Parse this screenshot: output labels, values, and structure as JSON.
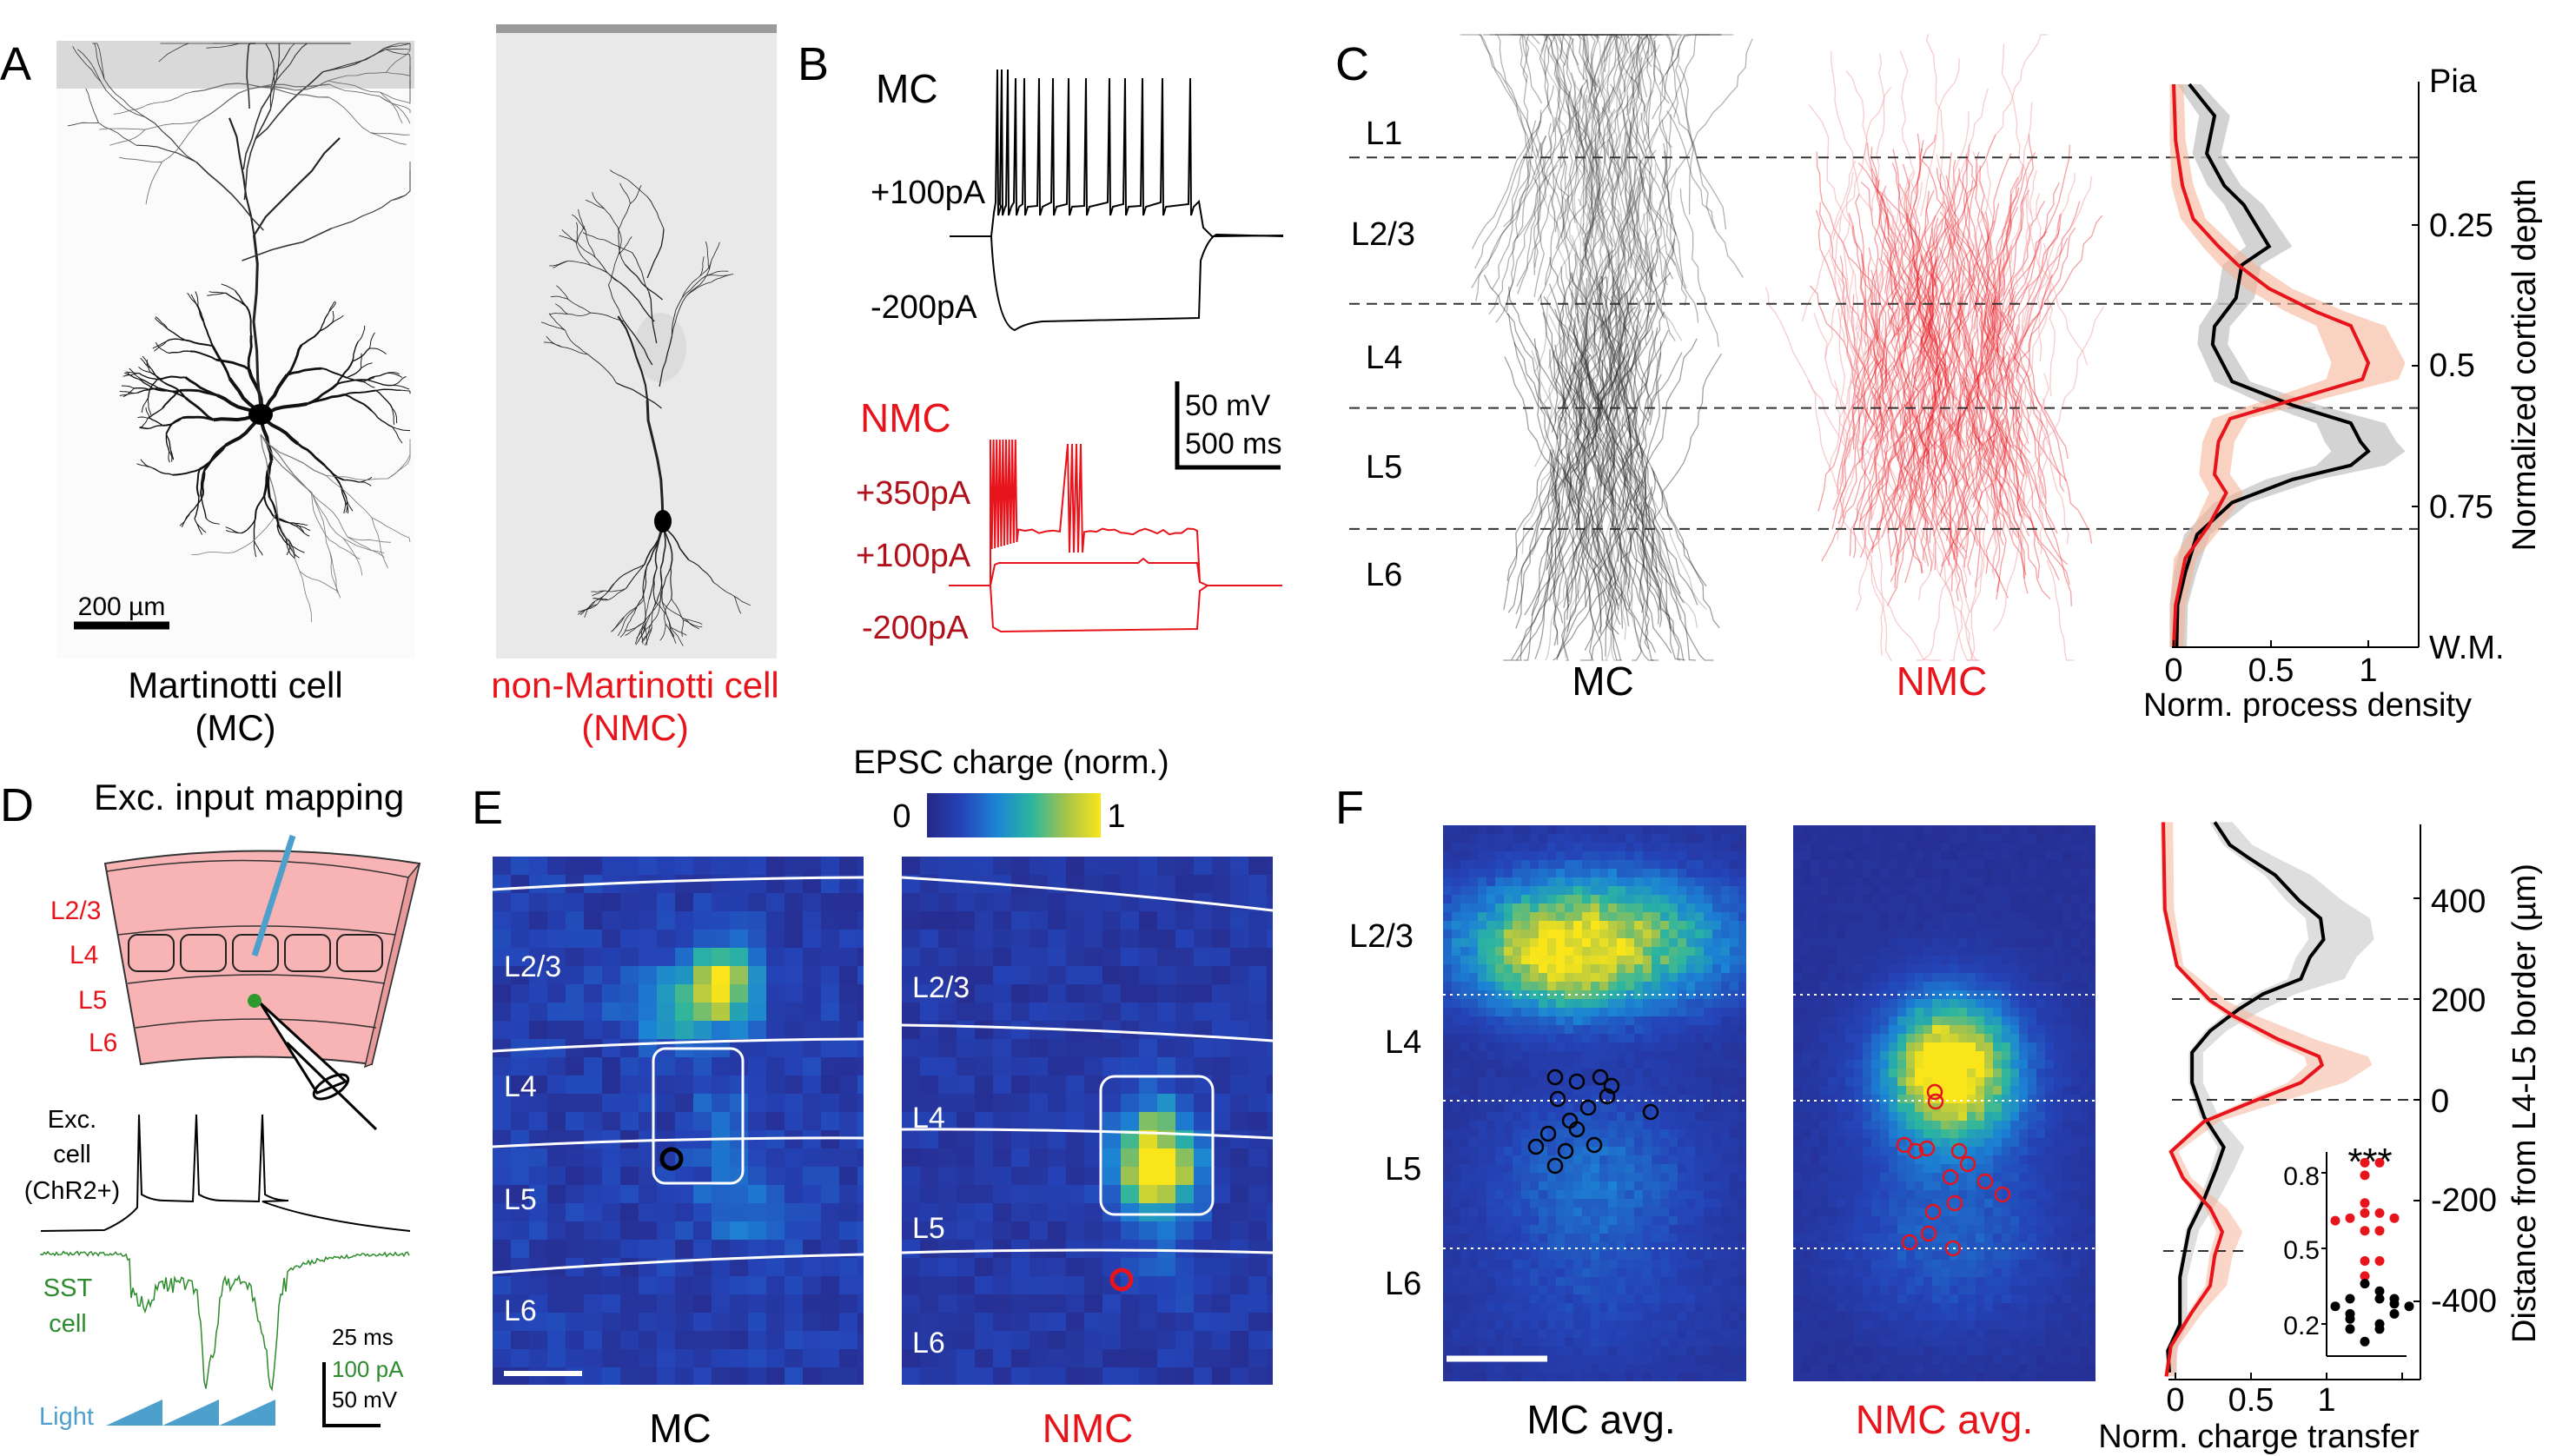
{
  "panels": {
    "A": {
      "label": "A",
      "scale_bar": "200 µm",
      "mc_caption_1": "Martinotti cell",
      "mc_caption_2": "(MC)",
      "nmc_caption_1": "non-Martinotti cell",
      "nmc_caption_2": "(NMC)"
    },
    "B": {
      "label": "B",
      "mc_title": "MC",
      "mc_currents": [
        "+100pA",
        "-200pA"
      ],
      "nmc_title": "NMC",
      "nmc_currents": [
        "+350pA",
        "+100pA",
        "-200pA"
      ],
      "scale_mv": "50 mV",
      "scale_ms": "500 ms"
    },
    "C": {
      "label": "C",
      "layers": [
        "L1",
        "L2/3",
        "L4",
        "L5",
        "L6"
      ],
      "mc_caption": "MC",
      "nmc_caption": "NMC"
    },
    "D": {
      "label": "D",
      "title": "Exc. input mapping",
      "layers": [
        "L2/3",
        "L4",
        "L5",
        "L6"
      ],
      "exc_cell": [
        "Exc.",
        "cell",
        "(ChR2+)"
      ],
      "sst_cell": [
        "SST",
        "cell"
      ],
      "light": "Light",
      "scale_ms": "25 ms",
      "scale_pa": "100 pA",
      "scale_mv": "50 mV"
    },
    "E": {
      "label": "E",
      "colorbar_title": "EPSC charge (norm.)",
      "colorbar_min": "0",
      "colorbar_max": "1",
      "mc_layers": [
        "L2/3",
        "L4",
        "L5",
        "L6"
      ],
      "nmc_layers": [
        "L2/3",
        "L4",
        "L5",
        "L6"
      ],
      "mc_caption": "MC",
      "nmc_caption": "NMC"
    },
    "F": {
      "label": "F",
      "layers": [
        "L2/3",
        "L4",
        "L5",
        "L6"
      ],
      "mc_caption": "MC avg.",
      "nmc_caption": "NMC avg."
    }
  },
  "colors": {
    "mc": "#000000",
    "nmc": "#e8141b",
    "mc_band": "#c8c8c8",
    "nmc_band": "#f6b49a",
    "sst": "#2e8b2e",
    "light": "#4ea0cc",
    "slab": "#f8b4b4"
  },
  "chart_data": [
    {
      "type": "line",
      "xlabel": "Norm. process density",
      "ylabel": "Normalized cortical depth",
      "xticks": [
        0,
        0.5,
        1
      ],
      "xtick_labels": [
        "0",
        "0.5",
        "1"
      ],
      "ytick_labels": [
        "Pia",
        "0.25",
        "0.5",
        "0.75",
        "W.M."
      ],
      "ylim": [
        0,
        1
      ],
      "y_inverted": true,
      "layer_borders": [
        0.13,
        0.39,
        0.575,
        0.79
      ],
      "series": [
        {
          "color": "#000000",
          "depth": [
            0,
            0.056,
            0.123,
            0.18,
            0.214,
            0.288,
            0.321,
            0.38,
            0.43,
            0.462,
            0.528,
            0.57,
            0.602,
            0.635,
            0.652,
            0.677,
            0.702,
            0.743,
            0.8,
            0.867,
            0.925,
            1.0
          ],
          "values": [
            0.08,
            0.21,
            0.17,
            0.26,
            0.36,
            0.49,
            0.35,
            0.32,
            0.21,
            0.2,
            0.3,
            0.61,
            0.91,
            0.96,
            1.0,
            0.91,
            0.61,
            0.3,
            0.12,
            0.06,
            0.02,
            0.015
          ]
        },
        {
          "color": "#e8141b",
          "depth": [
            0,
            0.1,
            0.18,
            0.239,
            0.288,
            0.321,
            0.363,
            0.404,
            0.429,
            0.495,
            0.524,
            0.561,
            0.594,
            0.635,
            0.693,
            0.726,
            0.784,
            0.842,
            0.925,
            1.0
          ],
          "values": [
            0,
            0.01,
            0.045,
            0.1,
            0.23,
            0.33,
            0.49,
            0.73,
            0.91,
            1.0,
            0.97,
            0.61,
            0.29,
            0.23,
            0.21,
            0.27,
            0.18,
            0.06,
            0.01,
            0
          ]
        }
      ]
    },
    {
      "type": "line",
      "xlabel": "Norm. charge transfer",
      "ylabel": "Distance from L4-L5 border (µm)",
      "xticks": [
        0,
        0.5,
        1
      ],
      "xtick_labels": [
        "0",
        "0.5",
        "1"
      ],
      "yticks": [
        400,
        200,
        0,
        -200,
        -400
      ],
      "ytick_labels": [
        "400",
        "200",
        "0",
        "-200",
        "-400"
      ],
      "ylim": [
        -555,
        547
      ],
      "layer_borders": [
        200,
        0,
        -300
      ],
      "series": [
        {
          "color": "#000000",
          "distance": [
            551,
            506,
            481,
            446,
            395,
            360,
            318,
            283,
            240,
            210,
            180,
            137,
            94,
            34,
            -34,
            -94,
            -137,
            -197,
            -258,
            -352,
            -446,
            -498,
            -541
          ],
          "values": [
            0.26,
            0.36,
            0.48,
            0.66,
            0.82,
            0.96,
            0.98,
            0.89,
            0.83,
            0.58,
            0.42,
            0.23,
            0.11,
            0.11,
            0.19,
            0.32,
            0.27,
            0.19,
            0.09,
            0.03,
            0.03,
            -0.05,
            -0.04
          ]
        },
        {
          "color": "#e8141b",
          "distance": [
            551,
            378,
            266,
            197,
            167,
            120,
            86,
            69,
            34,
            0,
            -43,
            -103,
            -155,
            -215,
            -262,
            -309,
            -369,
            -421,
            -489,
            -549
          ],
          "values": [
            -0.08,
            -0.07,
            0.01,
            0.23,
            0.38,
            0.68,
            0.95,
            0.97,
            0.83,
            0.54,
            0.19,
            -0.03,
            0.05,
            0.23,
            0.31,
            0.26,
            0.23,
            0.11,
            -0.03,
            -0.06
          ]
        }
      ]
    },
    {
      "type": "scatter",
      "annotation": "***",
      "yticks": [
        0.8,
        0.5,
        0.2
      ],
      "ytick_labels": [
        "0.8",
        "0.5",
        "0.2"
      ],
      "series": [
        {
          "color": "#e8141b",
          "values": [
            0.84,
            0.84,
            0.79,
            0.68,
            0.64,
            0.64,
            0.62,
            0.62,
            0.61,
            0.57,
            0.57,
            0.45,
            0.45,
            0.39
          ]
        },
        {
          "color": "#000000",
          "values": [
            0.36,
            0.33,
            0.3,
            0.3,
            0.3,
            0.28,
            0.27,
            0.27,
            0.24,
            0.24,
            0.22,
            0.2,
            0.18,
            0.18,
            0.13
          ]
        }
      ]
    }
  ]
}
